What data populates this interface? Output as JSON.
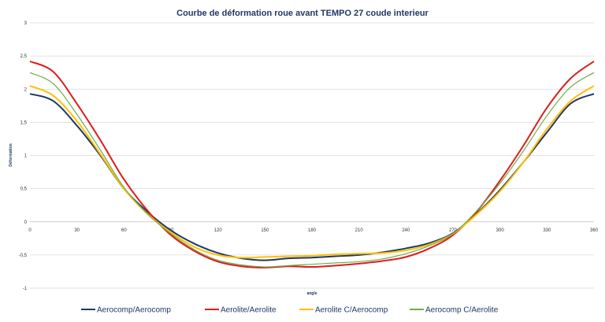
{
  "chart_data": {
    "type": "line",
    "title": "Courbe de déformation roue avant TEMPO 27 coude interieur",
    "xlabel": "angle",
    "ylabel": "Déformation",
    "xlim": [
      0,
      360
    ],
    "ylim": [
      -1,
      3
    ],
    "x_ticks": [
      0,
      30,
      60,
      90,
      120,
      150,
      180,
      210,
      240,
      270,
      300,
      330,
      360
    ],
    "y_ticks": [
      -1,
      -0.5,
      0,
      0.5,
      1,
      1.5,
      2,
      2.5,
      3
    ],
    "x_tick_labels": [
      "0",
      "30",
      "60",
      "90",
      "120",
      "150",
      "180",
      "210",
      "240",
      "270",
      "300",
      "330",
      "360"
    ],
    "y_tick_labels": [
      "-1",
      "-0,5",
      "0",
      "0,5",
      "1",
      "1,5",
      "2",
      "2,5",
      "3"
    ],
    "grid": "horizontal",
    "legend_position": "bottom",
    "x": [
      0,
      15,
      30,
      45,
      60,
      75,
      90,
      105,
      120,
      135,
      150,
      165,
      180,
      195,
      210,
      225,
      240,
      255,
      270,
      285,
      300,
      315,
      330,
      345,
      360
    ],
    "series": [
      {
        "name": "Aerocomp/Aerocomp",
        "color": "#1f3864",
        "width": 2,
        "values": [
          1.93,
          1.82,
          1.45,
          1.0,
          0.5,
          0.15,
          -0.13,
          -0.33,
          -0.47,
          -0.55,
          -0.58,
          -0.55,
          -0.54,
          -0.52,
          -0.5,
          -0.46,
          -0.4,
          -0.32,
          -0.17,
          0.12,
          0.48,
          0.9,
          1.35,
          1.78,
          1.93
        ]
      },
      {
        "name": "Aerolite/Aerolite",
        "color": "#dc1c1c",
        "width": 2,
        "values": [
          2.42,
          2.26,
          1.78,
          1.23,
          0.64,
          0.17,
          -0.2,
          -0.44,
          -0.6,
          -0.67,
          -0.69,
          -0.67,
          -0.68,
          -0.66,
          -0.63,
          -0.59,
          -0.53,
          -0.4,
          -0.2,
          0.15,
          0.62,
          1.15,
          1.72,
          2.16,
          2.42
        ]
      },
      {
        "name": "Aerolite C/Aerocomp",
        "color": "#ffc000",
        "width": 2,
        "values": [
          2.05,
          1.9,
          1.52,
          1.02,
          0.5,
          0.12,
          -0.16,
          -0.38,
          -0.5,
          -0.54,
          -0.53,
          -0.52,
          -0.51,
          -0.49,
          -0.48,
          -0.47,
          -0.43,
          -0.34,
          -0.18,
          0.11,
          0.46,
          0.9,
          1.4,
          1.82,
          2.05
        ]
      },
      {
        "name": "Aerocomp C/Aerolite",
        "color": "#70ad47",
        "width": 1.2,
        "values": [
          2.25,
          2.08,
          1.62,
          1.08,
          0.52,
          0.12,
          -0.18,
          -0.42,
          -0.58,
          -0.65,
          -0.68,
          -0.66,
          -0.64,
          -0.62,
          -0.6,
          -0.56,
          -0.48,
          -0.36,
          -0.18,
          0.16,
          0.58,
          1.07,
          1.6,
          2.03,
          2.25
        ]
      }
    ]
  }
}
